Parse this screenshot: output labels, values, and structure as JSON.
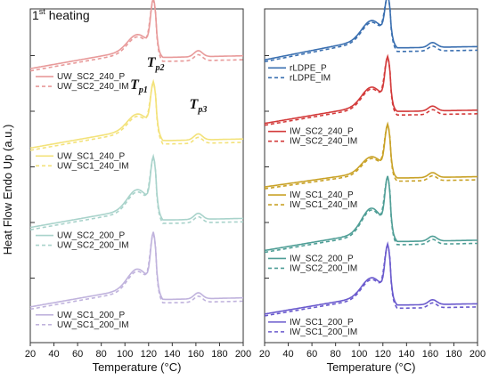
{
  "chart_data": {
    "heading": {
      "num": "1",
      "sup": "st",
      "rest": " heating"
    },
    "ylabel": "Heat Flow Endo Up (a.u.)",
    "annotations": [
      {
        "main": "T",
        "sub": "p1",
        "x": 112
      },
      {
        "main": "T",
        "sub": "p2",
        "x": 126
      },
      {
        "main": "T",
        "sub": "p3",
        "x": 162
      }
    ],
    "panels": [
      {
        "type": "line",
        "xlabel": "Temperature (°C)",
        "xlim": [
          20,
          200
        ],
        "xticks": [
          20,
          40,
          60,
          80,
          100,
          120,
          140,
          160,
          180,
          200
        ],
        "y_unit_ticks": 5,
        "offset_step": 1.6,
        "groups": [
          {
            "color": "#e89a9a",
            "peak1": 0.2,
            "peak2": 0.6,
            "base": 0.0,
            "rise": 0.25,
            "post": 0.15,
            "series": [
              {
                "name": "UW_SC2_240_P",
                "style": "solid"
              },
              {
                "name": "UW_SC2_240_IM",
                "style": "dashed"
              }
            ]
          },
          {
            "color": "#f3e27a",
            "peak1": 0.2,
            "peak2": 0.55,
            "base": 0.0,
            "rise": 0.25,
            "post": 0.1,
            "series": [
              {
                "name": "UW_SC1_240_P",
                "style": "solid"
              },
              {
                "name": "UW_SC1_240_IM",
                "style": "dashed"
              }
            ]
          },
          {
            "color": "#a9d3cb",
            "peak1": 0.25,
            "peak2": 0.6,
            "base": 0.0,
            "rise": 0.25,
            "post": 0.1,
            "series": [
              {
                "name": "UW_SC2_200_P",
                "style": "solid"
              },
              {
                "name": "UW_SC2_200_IM",
                "style": "dashed"
              }
            ]
          },
          {
            "color": "#c0b3dd",
            "peak1": 0.25,
            "peak2": 0.65,
            "base": 0.0,
            "rise": 0.25,
            "post": 0.1,
            "series": [
              {
                "name": "UW_SC1_200_P",
                "style": "solid"
              },
              {
                "name": "UW_SC1_200_IM",
                "style": "dashed"
              }
            ]
          }
        ]
      },
      {
        "type": "line",
        "xlabel": "Temperature (°C)",
        "xlim": [
          20,
          200
        ],
        "xticks": [
          20,
          40,
          60,
          80,
          100,
          120,
          140,
          160,
          180,
          200
        ],
        "y_unit_ticks": 5,
        "offset_step": 1.6,
        "groups": [
          {
            "color": "#3a6fb0",
            "peak1": 0.3,
            "peak2": 0.6,
            "base": 0.0,
            "rise": 0.35,
            "post": 0.2,
            "series": [
              {
                "name": "rLDPE_P",
                "style": "solid"
              },
              {
                "name": "rLDPE_IM",
                "style": "dashed"
              }
            ]
          },
          {
            "color": "#d33a3a",
            "peak1": 0.3,
            "peak2": 0.7,
            "base": 0.0,
            "rise": 0.3,
            "post": 0.2,
            "series": [
              {
                "name": "IW_SC2_240_P",
                "style": "solid"
              },
              {
                "name": "IW_SC2_240_IM",
                "style": "dashed"
              }
            ]
          },
          {
            "color": "#c9a227",
            "peak1": 0.25,
            "peak2": 0.7,
            "base": 0.0,
            "rise": 0.25,
            "post": 0.15,
            "series": [
              {
                "name": "IW_SC1_240_P",
                "style": "solid"
              },
              {
                "name": "IW_SC1_240_IM",
                "style": "dashed"
              }
            ]
          },
          {
            "color": "#4f9e96",
            "peak1": 0.4,
            "peak2": 0.8,
            "base": 0.0,
            "rise": 0.3,
            "post": 0.15,
            "series": [
              {
                "name": "IW_SC2_200_P",
                "style": "solid"
              },
              {
                "name": "IW_SC2_200_IM",
                "style": "dashed"
              }
            ]
          },
          {
            "color": "#6a5acd",
            "peak1": 0.3,
            "peak2": 0.75,
            "base": 0.0,
            "rise": 0.3,
            "post": 0.15,
            "series": [
              {
                "name": "IW_SC1_200_P",
                "style": "solid"
              },
              {
                "name": "IW_SC1_200_IM",
                "style": "dashed"
              }
            ]
          }
        ]
      }
    ]
  }
}
